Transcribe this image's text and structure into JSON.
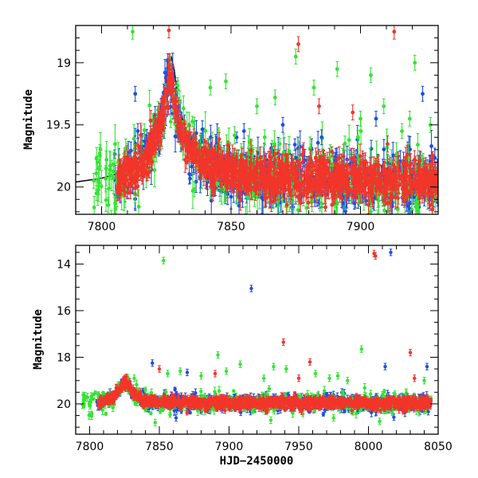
{
  "chart_data": [
    {
      "type": "scatter",
      "panel": "top",
      "title": "",
      "xlabel": "",
      "ylabel": "Magnitude",
      "xlim": [
        7790,
        7930
      ],
      "ylim": [
        20.22,
        18.7
      ],
      "y_inverted": true,
      "xticks": [
        7800,
        7850,
        7900
      ],
      "yticks": [
        19,
        19.5,
        20
      ],
      "ytick_labels": [
        "19",
        "19.5",
        "20"
      ],
      "colors": {
        "blue": "#1f4fe0",
        "green": "#33e533",
        "red": "#f2352a"
      },
      "model_curve": {
        "color": "#000000",
        "x": [
          7790,
          7800,
          7810,
          7815,
          7818,
          7821,
          7823,
          7825,
          7826,
          7827,
          7828,
          7830,
          7833,
          7837,
          7842,
          7850,
          7860,
          7875,
          7890,
          7905,
          7920,
          7930
        ],
        "y": [
          19.96,
          19.93,
          19.87,
          19.79,
          19.7,
          19.55,
          19.4,
          19.15,
          19.0,
          18.96,
          19.05,
          19.35,
          19.6,
          19.76,
          19.85,
          19.9,
          19.93,
          19.95,
          19.96,
          19.965,
          19.97,
          19.97
        ]
      },
      "baseline": {
        "x": [
          7806,
          7810,
          7815,
          7819,
          7822,
          7824,
          7825,
          7826,
          7827,
          7828,
          7830,
          7833,
          7837,
          7842,
          7850,
          7860,
          7875,
          7890,
          7905,
          7930
        ],
        "y": [
          19.95,
          19.9,
          19.82,
          19.7,
          19.55,
          19.4,
          19.25,
          19.15,
          19.2,
          19.3,
          19.5,
          19.62,
          19.75,
          19.82,
          19.88,
          19.9,
          19.93,
          19.94,
          19.95,
          19.96
        ]
      },
      "series": [
        {
          "name": "",
          "color": "blue",
          "start": 7805,
          "end": 7930,
          "density": 5.5,
          "scatter": 0.11,
          "err_min": 0.03,
          "err_max": 0.13,
          "seed": 11
        },
        {
          "name": "",
          "color": "green",
          "start": 7797,
          "end": 7930,
          "density": 2.5,
          "scatter": 0.14,
          "err_min": 0.04,
          "err_max": 0.16,
          "seed": 23
        },
        {
          "name": "",
          "color": "red",
          "start": 7806,
          "end": 7930,
          "density": 9,
          "scatter": 0.08,
          "err_min": 0.03,
          "err_max": 0.1,
          "seed": 37
        }
      ],
      "outliers": [
        {
          "x": 7797,
          "y": 19.95,
          "color": "green"
        },
        {
          "x": 7798,
          "y": 20.05,
          "color": "green"
        },
        {
          "x": 7812,
          "y": 18.75,
          "color": "green"
        },
        {
          "x": 7813,
          "y": 19.25,
          "color": "blue"
        },
        {
          "x": 7814,
          "y": 19.55,
          "color": "blue"
        },
        {
          "x": 7826,
          "y": 18.74,
          "color": "red"
        },
        {
          "x": 7842,
          "y": 19.2,
          "color": "green"
        },
        {
          "x": 7848,
          "y": 19.15,
          "color": "green"
        },
        {
          "x": 7855,
          "y": 19.55,
          "color": "blue"
        },
        {
          "x": 7860,
          "y": 19.35,
          "color": "green"
        },
        {
          "x": 7863,
          "y": 19.6,
          "color": "green"
        },
        {
          "x": 7867,
          "y": 19.28,
          "color": "green"
        },
        {
          "x": 7870,
          "y": 19.5,
          "color": "blue"
        },
        {
          "x": 7875,
          "y": 18.95,
          "color": "green"
        },
        {
          "x": 7876,
          "y": 18.85,
          "color": "red"
        },
        {
          "x": 7882,
          "y": 19.2,
          "color": "green"
        },
        {
          "x": 7884,
          "y": 19.35,
          "color": "red"
        },
        {
          "x": 7885,
          "y": 19.6,
          "color": "blue"
        },
        {
          "x": 7891,
          "y": 19.05,
          "color": "green"
        },
        {
          "x": 7894,
          "y": 19.65,
          "color": "green"
        },
        {
          "x": 7897,
          "y": 19.4,
          "color": "red"
        },
        {
          "x": 7900,
          "y": 19.45,
          "color": "green"
        },
        {
          "x": 7904,
          "y": 19.1,
          "color": "green"
        },
        {
          "x": 7906,
          "y": 19.45,
          "color": "blue"
        },
        {
          "x": 7909,
          "y": 19.35,
          "color": "green"
        },
        {
          "x": 7913,
          "y": 18.75,
          "color": "red"
        },
        {
          "x": 7916,
          "y": 19.55,
          "color": "green"
        },
        {
          "x": 7919,
          "y": 19.45,
          "color": "green"
        },
        {
          "x": 7921,
          "y": 19.0,
          "color": "green"
        },
        {
          "x": 7924,
          "y": 19.25,
          "color": "blue"
        },
        {
          "x": 7927,
          "y": 19.5,
          "color": "green"
        }
      ]
    },
    {
      "type": "scatter",
      "panel": "bottom",
      "title": "",
      "xlabel": "HJD−2450000",
      "ylabel": "Magnitude",
      "xlim": [
        7790,
        8050
      ],
      "ylim": [
        21.3,
        13.2
      ],
      "y_inverted": true,
      "xticks": [
        7800,
        7850,
        7900,
        7950,
        8000,
        8050
      ],
      "yticks": [
        14,
        16,
        18,
        20
      ],
      "ytick_labels": [
        "14",
        "16",
        "18",
        "20"
      ],
      "colors": {
        "blue": "#1f4fe0",
        "green": "#33e533",
        "red": "#f2352a"
      },
      "baseline": {
        "x": [
          7806,
          7812,
          7818,
          7822,
          7825,
          7826,
          7828,
          7832,
          7838,
          7845,
          7860,
          8050
        ],
        "y": [
          19.95,
          19.85,
          19.65,
          19.35,
          19.1,
          19.0,
          19.25,
          19.6,
          19.8,
          19.9,
          19.95,
          19.97
        ]
      },
      "series": [
        {
          "name": "",
          "color": "blue",
          "start": 7805,
          "end": 8045,
          "density": 3.2,
          "scatter": 0.16,
          "err_min": 0.05,
          "err_max": 0.2,
          "seed": 41
        },
        {
          "name": "",
          "color": "green",
          "start": 7795,
          "end": 8045,
          "density": 1.6,
          "scatter": 0.22,
          "err_min": 0.05,
          "err_max": 0.2,
          "seed": 53
        },
        {
          "name": "",
          "color": "red",
          "start": 7806,
          "end": 8045,
          "density": 5.5,
          "scatter": 0.12,
          "err_min": 0.05,
          "err_max": 0.15,
          "seed": 67
        }
      ],
      "outliers": [
        {
          "x": 7795,
          "y": 20.05,
          "color": "green"
        },
        {
          "x": 7832,
          "y": 18.9,
          "color": "green"
        },
        {
          "x": 7845,
          "y": 18.25,
          "color": "blue"
        },
        {
          "x": 7847,
          "y": 20.8,
          "color": "green"
        },
        {
          "x": 7850,
          "y": 18.5,
          "color": "red"
        },
        {
          "x": 7853,
          "y": 13.85,
          "color": "green"
        },
        {
          "x": 7856,
          "y": 18.7,
          "color": "green"
        },
        {
          "x": 7865,
          "y": 18.6,
          "color": "green"
        },
        {
          "x": 7870,
          "y": 18.65,
          "color": "blue"
        },
        {
          "x": 7880,
          "y": 18.8,
          "color": "green"
        },
        {
          "x": 7890,
          "y": 18.7,
          "color": "red"
        },
        {
          "x": 7892,
          "y": 17.9,
          "color": "green"
        },
        {
          "x": 7898,
          "y": 18.6,
          "color": "green"
        },
        {
          "x": 7908,
          "y": 18.3,
          "color": "green"
        },
        {
          "x": 7916,
          "y": 15.05,
          "color": "blue"
        },
        {
          "x": 7925,
          "y": 18.9,
          "color": "green"
        },
        {
          "x": 7932,
          "y": 18.4,
          "color": "green"
        },
        {
          "x": 7939,
          "y": 17.35,
          "color": "red"
        },
        {
          "x": 7941,
          "y": 18.5,
          "color": "green"
        },
        {
          "x": 7950,
          "y": 18.9,
          "color": "red"
        },
        {
          "x": 7958,
          "y": 18.2,
          "color": "red"
        },
        {
          "x": 7962,
          "y": 18.7,
          "color": "green"
        },
        {
          "x": 7972,
          "y": 18.9,
          "color": "green"
        },
        {
          "x": 7978,
          "y": 18.8,
          "color": "green"
        },
        {
          "x": 7985,
          "y": 19.0,
          "color": "green"
        },
        {
          "x": 7995,
          "y": 17.65,
          "color": "green"
        },
        {
          "x": 8004,
          "y": 13.55,
          "color": "red"
        },
        {
          "x": 8005,
          "y": 13.65,
          "color": "red"
        },
        {
          "x": 8016,
          "y": 13.5,
          "color": "blue"
        },
        {
          "x": 8012,
          "y": 18.4,
          "color": "blue"
        },
        {
          "x": 8030,
          "y": 17.8,
          "color": "red"
        },
        {
          "x": 8033,
          "y": 18.9,
          "color": "red"
        },
        {
          "x": 8042,
          "y": 18.4,
          "color": "blue"
        },
        {
          "x": 8040,
          "y": 19.0,
          "color": "green"
        },
        {
          "x": 8008,
          "y": 20.75,
          "color": "green"
        },
        {
          "x": 7975,
          "y": 20.6,
          "color": "green"
        },
        {
          "x": 7930,
          "y": 20.7,
          "color": "green"
        },
        {
          "x": 7862,
          "y": 20.6,
          "color": "blue"
        }
      ]
    }
  ]
}
